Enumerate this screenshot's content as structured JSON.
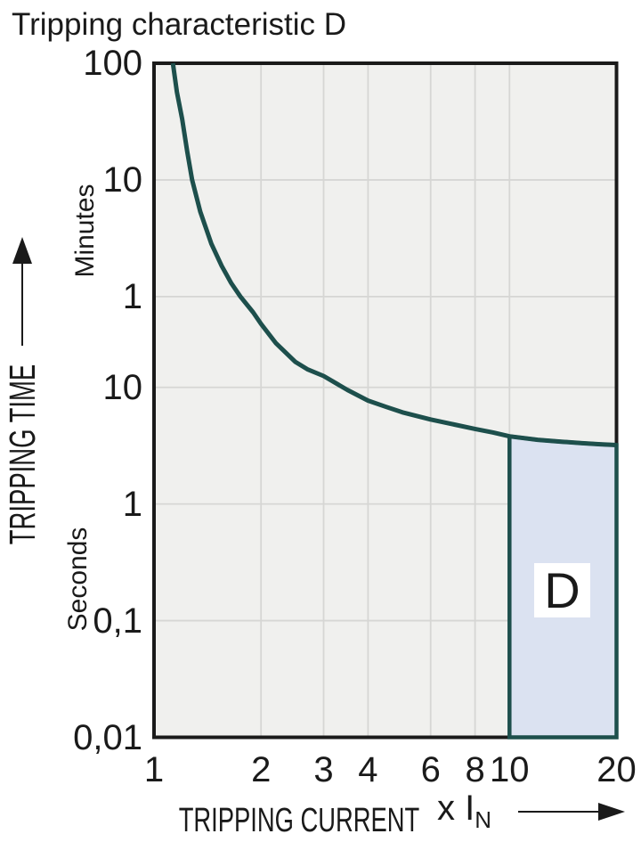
{
  "title": "Tripping characteristic D",
  "axis": {
    "y_title": "TRIPPING TIME",
    "y_unit_upper": "Minutes",
    "y_unit_lower": "Seconds",
    "x_title": "TRIPPING CURRENT",
    "x_unit_prefix": "x I",
    "x_unit_sub": "N"
  },
  "region_label": "D",
  "colors": {
    "curve": "#1d4f4c",
    "region_fill": "#dbe2f1",
    "plot_bg": "#f0f0ee",
    "grid": "#d6d6d4",
    "border": "#1a1a1a",
    "text": "#1a1a1a",
    "badge_bg": "#ffffff"
  },
  "chart_data": {
    "type": "line",
    "title": "Tripping characteristic D",
    "xlabel": "TRIPPING CURRENT (x IN)",
    "ylabel": "TRIPPING TIME",
    "x_scale": "log",
    "y_scale": "log",
    "xlim": [
      1,
      20
    ],
    "ylim_seconds": [
      0.01,
      6000
    ],
    "grid": true,
    "x_ticks": [
      {
        "label": "1",
        "value": 1
      },
      {
        "label": "2",
        "value": 2
      },
      {
        "label": "3",
        "value": 3
      },
      {
        "label": "4",
        "value": 4
      },
      {
        "label": "6",
        "value": 6
      },
      {
        "label": "8",
        "value": 8
      },
      {
        "label": "10",
        "value": 10
      },
      {
        "label": "20",
        "value": 20
      }
    ],
    "y_ticks": [
      {
        "label": "100",
        "seconds": 6000,
        "unit": "minutes"
      },
      {
        "label": "10",
        "seconds": 600,
        "unit": "minutes"
      },
      {
        "label": "1",
        "seconds": 60,
        "unit": "minutes"
      },
      {
        "label": "10",
        "seconds": 10,
        "unit": "seconds"
      },
      {
        "label": "1",
        "seconds": 1,
        "unit": "seconds"
      },
      {
        "label": "0,1",
        "seconds": 0.1,
        "unit": "seconds"
      },
      {
        "label": "0,01",
        "seconds": 0.01,
        "unit": "seconds"
      }
    ],
    "x_gridlines": [
      2,
      3,
      4,
      6,
      8,
      10
    ],
    "y_gridlines_seconds": [
      600,
      60,
      10,
      1,
      0.1
    ],
    "series": [
      {
        "name": "D tripping characteristic curve",
        "points_x_seconds": [
          [
            1.13,
            6000
          ],
          [
            1.16,
            3400
          ],
          [
            1.2,
            2000
          ],
          [
            1.24,
            1050
          ],
          [
            1.28,
            600
          ],
          [
            1.35,
            320
          ],
          [
            1.45,
            170
          ],
          [
            1.55,
            110
          ],
          [
            1.65,
            78
          ],
          [
            1.75,
            60
          ],
          [
            1.9,
            44
          ],
          [
            2.0,
            35
          ],
          [
            2.2,
            24
          ],
          [
            2.5,
            16.5
          ],
          [
            2.7,
            14.3
          ],
          [
            3.0,
            12.5
          ],
          [
            3.5,
            9.5
          ],
          [
            4.0,
            7.7
          ],
          [
            4.5,
            6.8
          ],
          [
            5.0,
            6.1
          ],
          [
            6.0,
            5.3
          ],
          [
            7.0,
            4.8
          ],
          [
            8.0,
            4.4
          ],
          [
            9.0,
            4.1
          ],
          [
            10.0,
            3.8
          ],
          [
            12.0,
            3.55
          ],
          [
            14.0,
            3.42
          ],
          [
            16.0,
            3.32
          ],
          [
            18.0,
            3.25
          ],
          [
            20.0,
            3.2
          ]
        ]
      }
    ],
    "region": {
      "label": "D",
      "x_range": [
        10,
        20
      ],
      "y_bottom_seconds": 0.01,
      "top_bound": "curve"
    }
  }
}
